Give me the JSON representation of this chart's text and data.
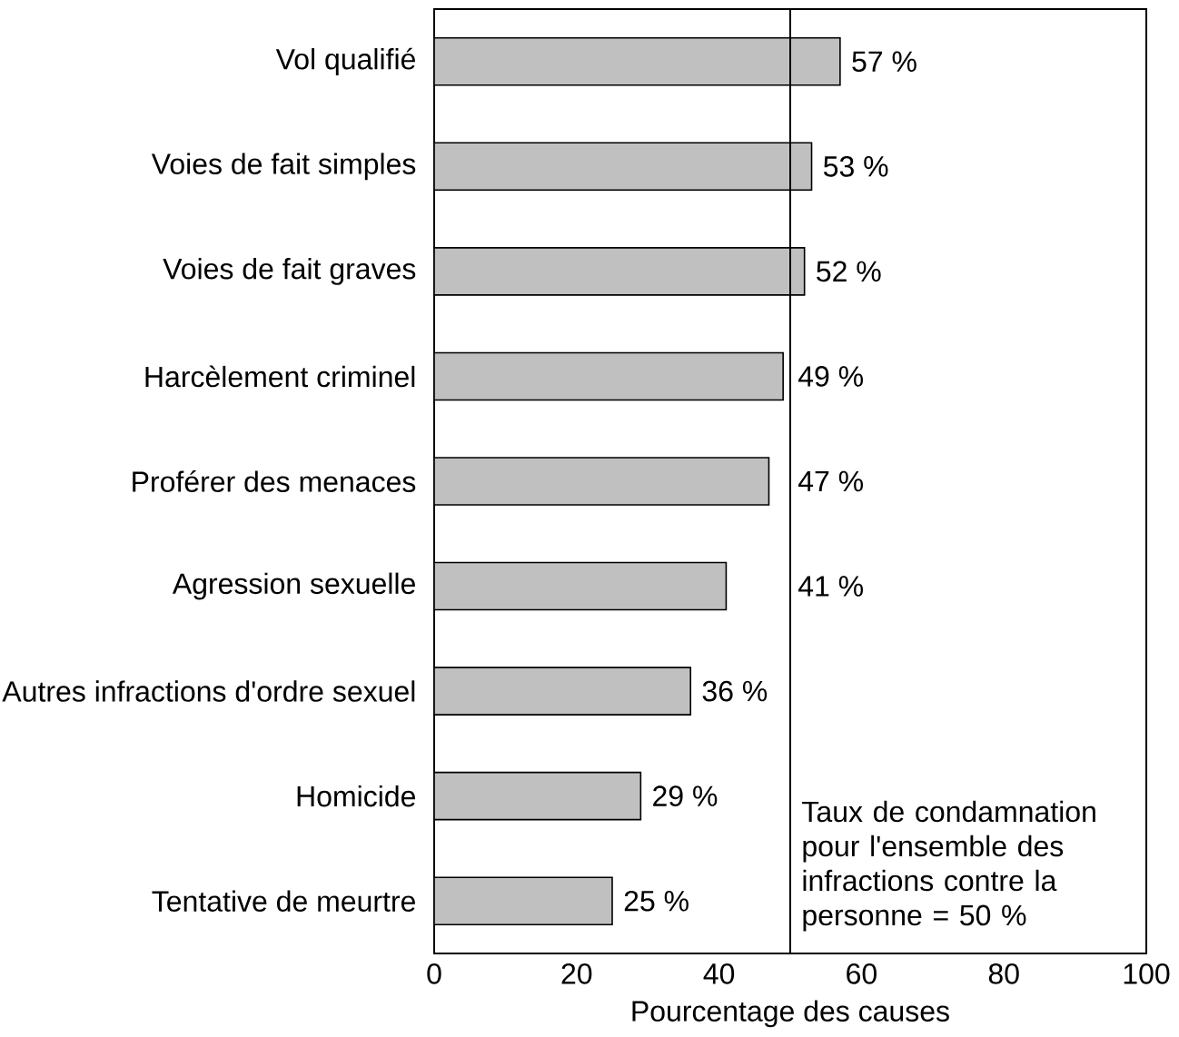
{
  "chart_data": {
    "type": "bar",
    "orientation": "horizontal",
    "xlabel": "Pourcentage des causes",
    "categories": [
      "Vol qualifié",
      "Voies de fait simples",
      "Voies de fait graves",
      "Harcèlement criminel",
      "Proférer des menaces",
      "Agression sexuelle",
      "Autres infractions d'ordre sexuel",
      "Homicide",
      "Tentative de meurtre"
    ],
    "values": [
      57,
      53,
      52,
      49,
      47,
      41,
      36,
      29,
      25
    ],
    "value_labels": [
      "57 %",
      "53 %",
      "52 %",
      "49 %",
      "47 %",
      "41 %",
      "36 %",
      "29 %",
      "25 %"
    ],
    "color": "#c0c0c0",
    "xlim": [
      0,
      100
    ],
    "xticks": [
      0,
      20,
      40,
      60,
      80,
      100
    ],
    "ref_lines": [
      {
        "axis": "x",
        "value": 50,
        "label": "Taux de condamnation pour l'ensemble des infractions contre la personne = 50 %",
        "color": "#000000"
      }
    ]
  }
}
